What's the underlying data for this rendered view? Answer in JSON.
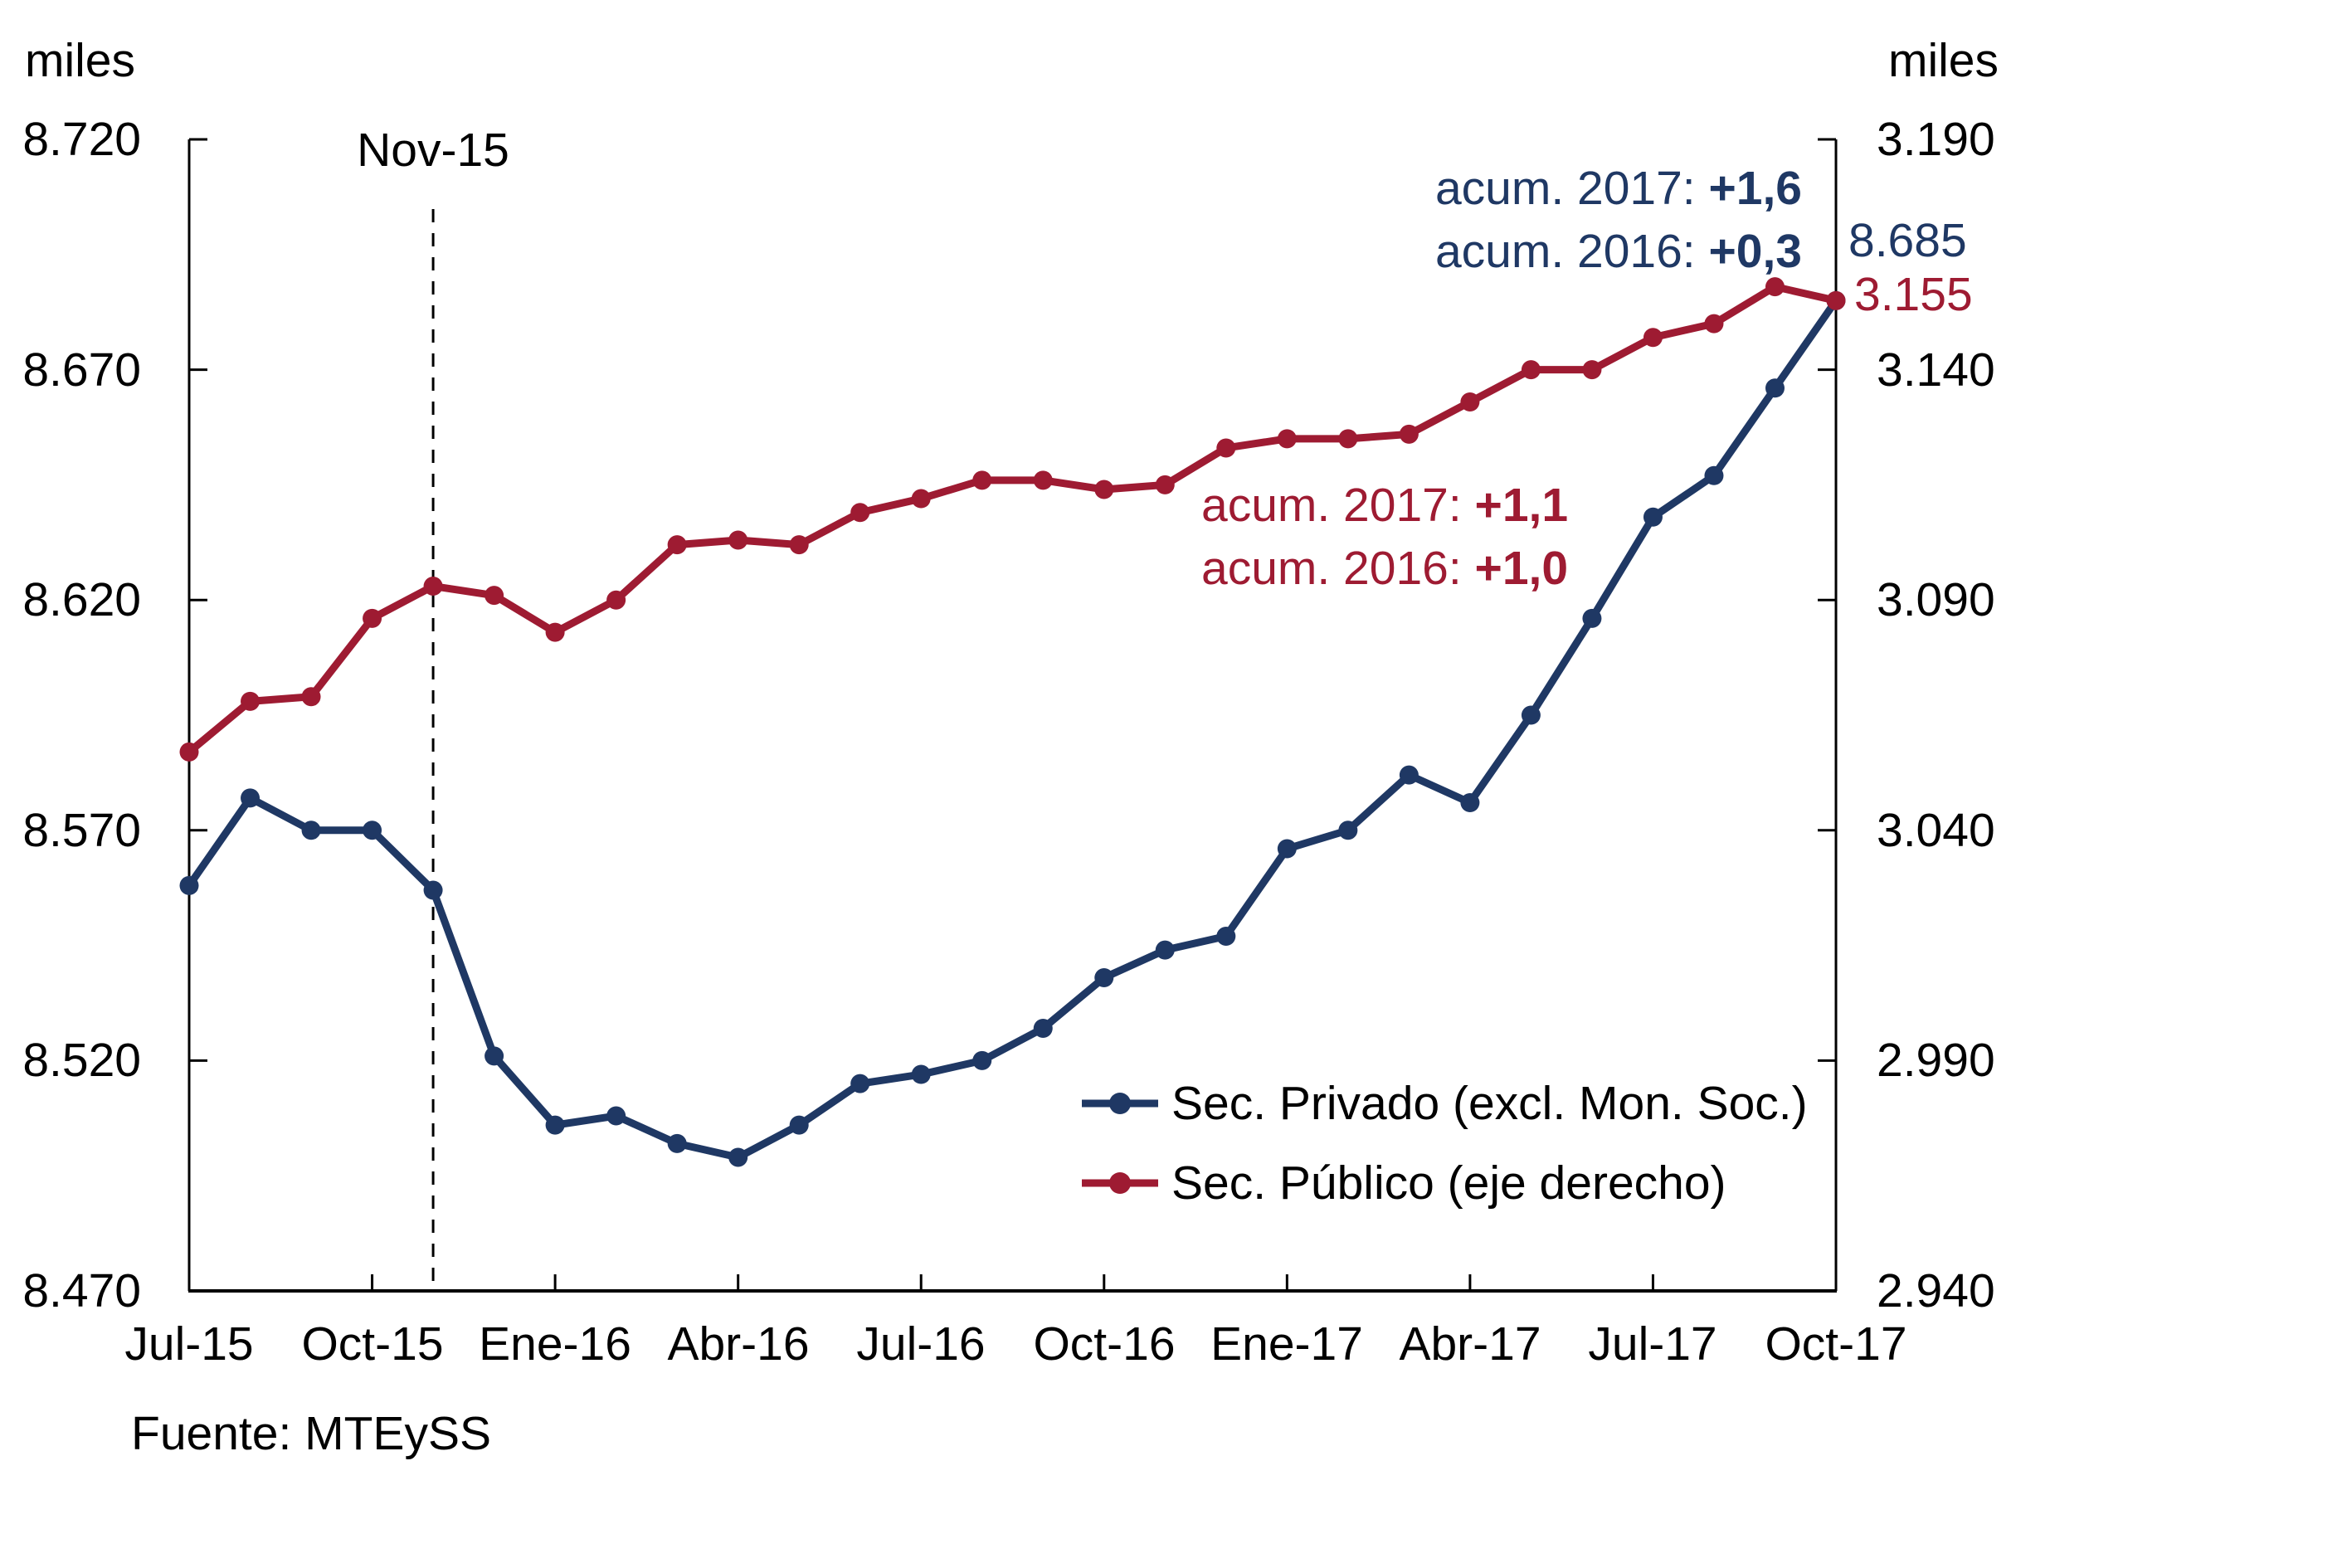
{
  "chart_data": {
    "type": "line",
    "title": "",
    "categories": [
      "Jul-15",
      "Ago-15",
      "Sep-15",
      "Oct-15",
      "Nov-15",
      "Dic-15",
      "Ene-16",
      "Feb-16",
      "Mar-16",
      "Abr-16",
      "May-16",
      "Jun-16",
      "Jul-16",
      "Ago-16",
      "Sep-16",
      "Oct-16",
      "Nov-16",
      "Dic-16",
      "Ene-17",
      "Feb-17",
      "Mar-17",
      "Abr-17",
      "May-17",
      "Jun-17",
      "Jul-17",
      "Ago-17",
      "Sep-17",
      "Oct-17"
    ],
    "x_tick_labels": [
      "Jul-15",
      "Oct-15",
      "Ene-16",
      "Abr-16",
      "Jul-16",
      "Oct-16",
      "Ene-17",
      "Abr-17",
      "Jul-17",
      "Oct-17"
    ],
    "series": [
      {
        "name": "Sec. Privado (excl. Mon. Soc.)",
        "axis": "left",
        "color": "#1f3864",
        "values": [
          8558,
          8577,
          8570,
          8570,
          8557,
          8521,
          8506,
          8508,
          8502,
          8499,
          8506,
          8515,
          8517,
          8520,
          8527,
          8538,
          8544,
          8547,
          8566,
          8570,
          8582,
          8576,
          8595,
          8616,
          8638,
          8647,
          8666,
          8685
        ]
      },
      {
        "name": "Sec. Público (eje derecho)",
        "axis": "right",
        "color": "#9e1b32",
        "values": [
          3057,
          3068,
          3069,
          3086,
          3093,
          3091,
          3083,
          3090,
          3102,
          3103,
          3102,
          3109,
          3112,
          3116,
          3116,
          3114,
          3115,
          3123,
          3125,
          3125,
          3126,
          3133,
          3140,
          3140,
          3147,
          3150,
          3158,
          3155
        ]
      }
    ],
    "left_axis": {
      "title": "miles",
      "min": 8470,
      "max": 8720,
      "tick_labels": [
        "8.720",
        "8.670",
        "8.620",
        "8.570",
        "8.520",
        "8.470"
      ]
    },
    "right_axis": {
      "title": "miles",
      "min": 2940,
      "max": 3190,
      "tick_labels": [
        "3.190",
        "3.140",
        "3.090",
        "3.040",
        "2.990",
        "2.940"
      ]
    },
    "reference_line": {
      "label": "Nov-15",
      "category_index": 4
    },
    "annotations": {
      "privado": {
        "line1_label": "acum. 2017: ",
        "line1_value": "+1,6",
        "line2_label": "acum. 2016: ",
        "line2_value": "+0,3",
        "last_point_label": "8.685"
      },
      "publico": {
        "line1_label": "acum. 2017: ",
        "line1_value": "+1,1",
        "line2_label": "acum. 2016: ",
        "line2_value": "+1,0",
        "last_point_label": "3.155"
      }
    },
    "grid": false,
    "legend_position": "inside-bottom-center",
    "source": "Fuente: MTEySS"
  }
}
